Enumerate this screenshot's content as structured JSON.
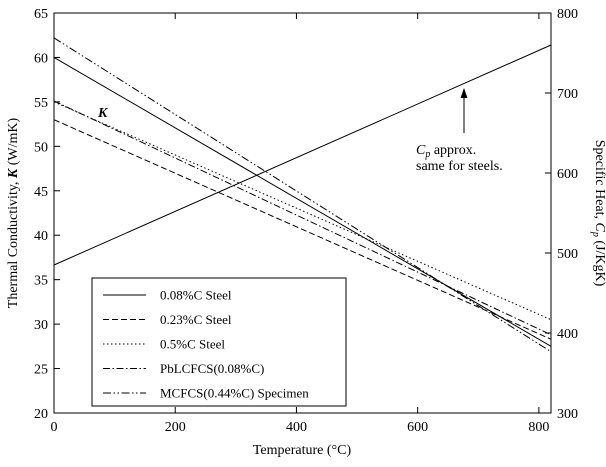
{
  "chart_data": {
    "type": "line",
    "xlabel": "Temperature (°C)",
    "ylabel_left_parts": [
      "Thermal Conductivity, ",
      "K",
      " (W/mK)"
    ],
    "ylabel_right_parts": [
      "Specific Heat, ",
      "C",
      "p",
      " (J/KgK)"
    ],
    "xlim": [
      0,
      820
    ],
    "ylim_left": [
      20,
      65
    ],
    "ylim_right": [
      300,
      800
    ],
    "x_ticks": [
      0,
      200,
      400,
      600,
      800
    ],
    "y_ticks_left": [
      20,
      25,
      30,
      35,
      40,
      45,
      50,
      55,
      60,
      65
    ],
    "y_ticks_right": [
      300,
      400,
      500,
      600,
      700,
      800
    ],
    "grid": false,
    "legend_placement": "lower-left",
    "series": [
      {
        "name": "0.08%C Steel",
        "axis": "left",
        "dash": "solid",
        "x": [
          0,
          820
        ],
        "y": [
          60.0,
          27.5
        ]
      },
      {
        "name": "0.23%C Steel",
        "axis": "left",
        "dash": "dashed",
        "x": [
          0,
          820
        ],
        "y": [
          53.0,
          28.3
        ]
      },
      {
        "name": "0.5%C Steel",
        "axis": "left",
        "dash": "dotted",
        "x": [
          0,
          820
        ],
        "y": [
          55.0,
          30.5
        ]
      },
      {
        "name": "PbLCFCS(0.08%C)",
        "axis": "left",
        "dash": "dashdot",
        "x": [
          0,
          820
        ],
        "y": [
          55.1,
          28.8
        ]
      },
      {
        "name": "MCFCS(0.44%C) Specimen",
        "axis": "left",
        "dash": "dashdotdot",
        "x": [
          0,
          820
        ],
        "y": [
          62.2,
          26.9
        ]
      },
      {
        "name": "",
        "axis": "right",
        "dash": "solid",
        "x": [
          0,
          820
        ],
        "y": [
          485,
          760
        ]
      }
    ],
    "annotations": [
      {
        "label": "K",
        "x": 75,
        "y": 54.2
      },
      {
        "label_parts": [
          "C",
          "p",
          " approx."
        ],
        "line2": "same for steels.",
        "x": 660,
        "y": 50.5,
        "arrow_to": [
          660,
          57.2
        ]
      }
    ]
  }
}
